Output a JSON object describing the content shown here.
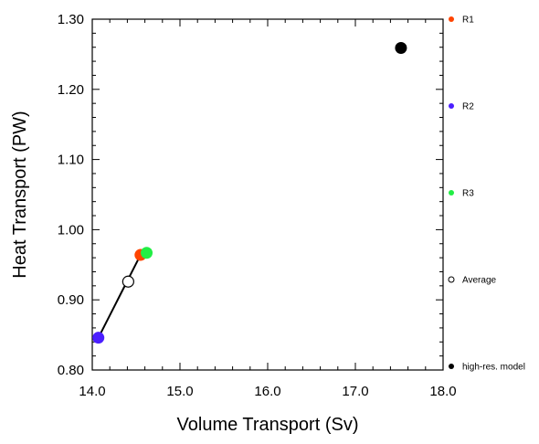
{
  "chart_data": {
    "type": "scatter",
    "title": "",
    "xlabel": "Volume Transport (Sv)",
    "ylabel": "Heat Transport (PW)",
    "xlim": [
      14.0,
      18.0
    ],
    "ylim": [
      0.8,
      1.3
    ],
    "x_ticks": [
      "14.0",
      "15.0",
      "16.0",
      "17.0",
      "18.0"
    ],
    "y_ticks": [
      "0.80",
      "0.90",
      "1.00",
      "1.10",
      "1.20",
      "1.30"
    ],
    "grid": false,
    "legend_position": "right",
    "series": [
      {
        "name": "R1",
        "color": "#ff4400",
        "marker": "filled-circle",
        "x": 14.55,
        "y": 0.964
      },
      {
        "name": "R2",
        "color": "#4b1fff",
        "marker": "filled-circle",
        "x": 14.07,
        "y": 0.846
      },
      {
        "name": "R3",
        "color": "#22ee44",
        "marker": "filled-circle",
        "x": 14.62,
        "y": 0.967
      },
      {
        "name": "Average",
        "color": "#000000",
        "marker": "open-circle",
        "x": 14.41,
        "y": 0.926
      },
      {
        "name": "high-res. model",
        "color": "#000000",
        "marker": "filled-circle",
        "x": 17.52,
        "y": 1.259
      }
    ],
    "connector_line": {
      "from": "R2",
      "to": "R1",
      "color": "#000000"
    }
  }
}
